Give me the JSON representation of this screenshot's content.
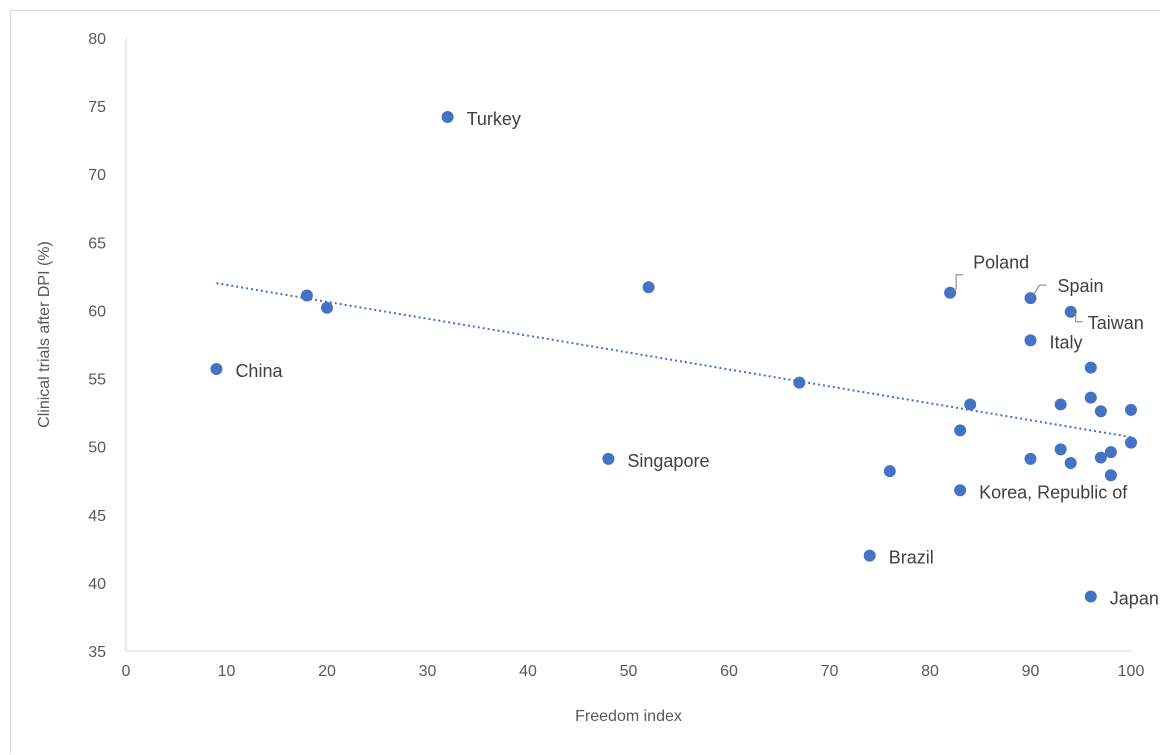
{
  "chart_data": {
    "type": "scatter",
    "title": "",
    "xlabel": "Freedom index",
    "ylabel": "Clinical trials after DPI (%)",
    "xlim": [
      0,
      100
    ],
    "ylim": [
      35,
      80
    ],
    "x_ticks": [
      0,
      10,
      20,
      30,
      40,
      50,
      60,
      70,
      80,
      90,
      100
    ],
    "y_ticks": [
      35,
      40,
      45,
      50,
      55,
      60,
      65,
      70,
      75,
      80
    ],
    "grid": false,
    "legend": "none",
    "colors": {
      "marker": "#4472c4",
      "trendline": "#4472c4",
      "axis": "#d9d9d9",
      "text": "#595959"
    },
    "trendline": {
      "style": "dotted",
      "from": [
        9,
        62.0
      ],
      "to": [
        100,
        50.7
      ]
    },
    "points": [
      {
        "x": 9,
        "y": 55.7,
        "label": "China"
      },
      {
        "x": 18,
        "y": 61.1
      },
      {
        "x": 20,
        "y": 60.2
      },
      {
        "x": 32,
        "y": 74.2,
        "label": "Turkey"
      },
      {
        "x": 48,
        "y": 49.1,
        "label": "Singapore"
      },
      {
        "x": 52,
        "y": 61.7
      },
      {
        "x": 67,
        "y": 54.7
      },
      {
        "x": 74,
        "y": 42.0,
        "label": "Brazil"
      },
      {
        "x": 76,
        "y": 48.2
      },
      {
        "x": 82,
        "y": 61.3,
        "label": "Poland"
      },
      {
        "x": 83,
        "y": 51.2
      },
      {
        "x": 83,
        "y": 46.8,
        "label": "Korea, Republic of"
      },
      {
        "x": 84,
        "y": 53.1
      },
      {
        "x": 90,
        "y": 60.9,
        "label": "Spain"
      },
      {
        "x": 90,
        "y": 57.8,
        "label": "Italy"
      },
      {
        "x": 90,
        "y": 49.1
      },
      {
        "x": 93,
        "y": 53.1
      },
      {
        "x": 93,
        "y": 49.8
      },
      {
        "x": 94,
        "y": 59.9,
        "label": "Taiwan"
      },
      {
        "x": 94,
        "y": 48.8
      },
      {
        "x": 96,
        "y": 55.8
      },
      {
        "x": 96,
        "y": 53.6
      },
      {
        "x": 96,
        "y": 39.0,
        "label": "Japan"
      },
      {
        "x": 97,
        "y": 52.6
      },
      {
        "x": 97,
        "y": 49.2
      },
      {
        "x": 98,
        "y": 49.6
      },
      {
        "x": 98,
        "y": 47.9
      },
      {
        "x": 100,
        "y": 52.7
      },
      {
        "x": 100,
        "y": 50.3
      }
    ]
  }
}
